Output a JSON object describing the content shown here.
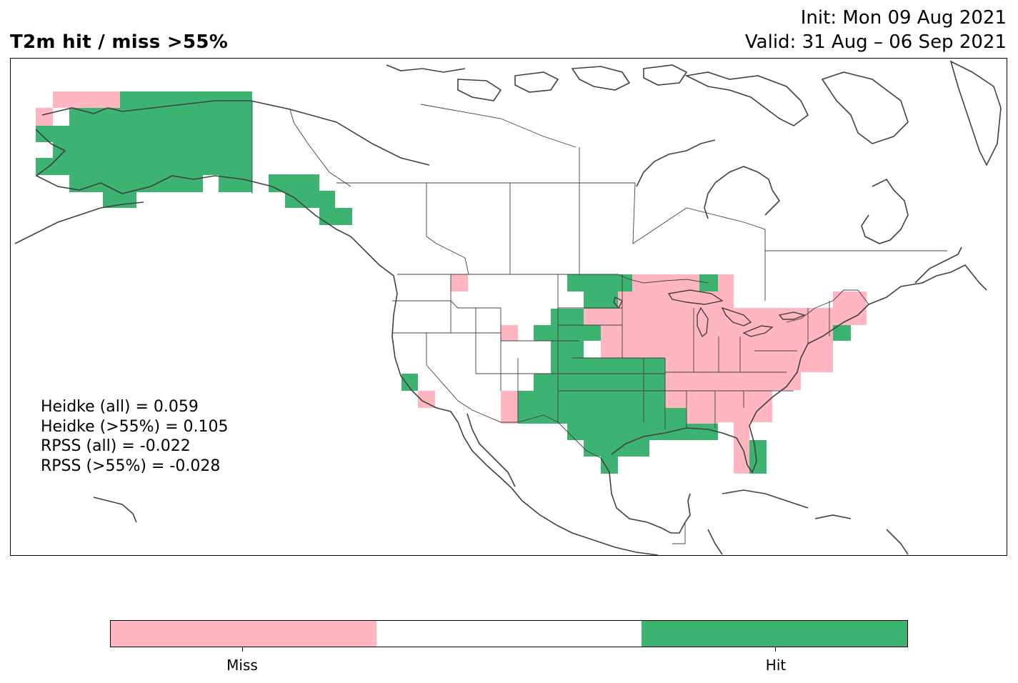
{
  "title": "T2m hit / miss  >55%",
  "init": "Init: Mon 09 Aug 2021",
  "valid": "Valid: 31 Aug – 06 Sep 2021",
  "scores": [
    "Heidke (all) = 0.059",
    "Heidke (>55%) = 0.105",
    "RPSS (all) = -0.022",
    "RPSS (>55%) = -0.028"
  ],
  "legend": {
    "miss_label": "Miss",
    "hit_label": "Hit",
    "miss_color": "#ffb6c1",
    "neutral_color": "#ffffff",
    "hit_color": "#3cb371"
  },
  "map": {
    "region": "North America",
    "features": [
      "coastlines",
      "country borders",
      "state and province borders"
    ],
    "categories": [
      "Miss",
      "Hit"
    ]
  }
}
